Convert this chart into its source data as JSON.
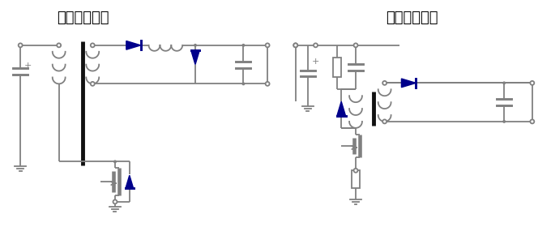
{
  "title_left": "正激电源电路",
  "title_right": "反激电源电路",
  "title_fontsize": 13,
  "title_fontweight": "bold",
  "bg_color": "#ffffff",
  "line_color": "#808080",
  "blue_color": "#00008B",
  "line_width": 1.3,
  "fig_width": 6.8,
  "fig_height": 2.8,
  "dpi": 100
}
